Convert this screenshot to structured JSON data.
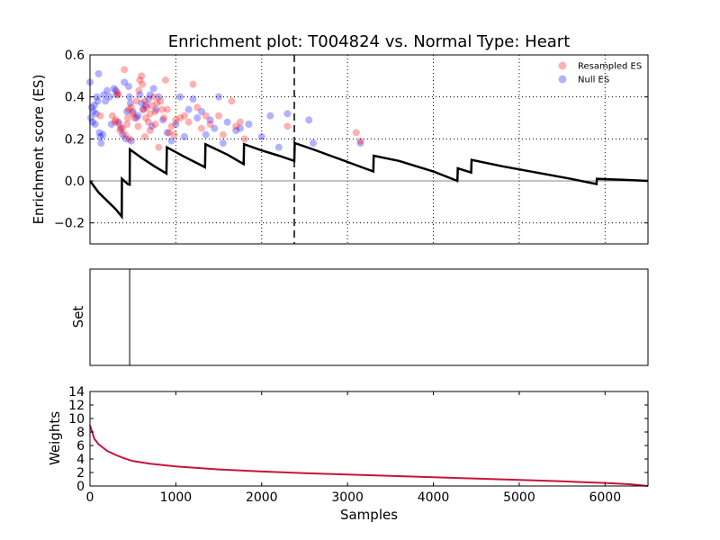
{
  "chart_data": [
    {
      "type": "line",
      "title": "Enrichment plot: T004824 vs. Normal Type: Heart",
      "ylabel": "Enrichment score (ES)",
      "xlim": [
        0,
        6500
      ],
      "ylim": [
        -0.3,
        0.6
      ],
      "yticks": [
        -0.2,
        0.0,
        0.2,
        0.4,
        0.6
      ],
      "ytick_labels": [
        "−0.2",
        "0.0",
        "0.2",
        "0.4",
        "0.6"
      ],
      "grid": true,
      "legend_position": "top-right",
      "vertical_marker_x": 2380,
      "es_curve": [
        [
          0,
          0.0
        ],
        [
          100,
          -0.055
        ],
        [
          200,
          -0.095
        ],
        [
          300,
          -0.135
        ],
        [
          370,
          -0.17
        ],
        [
          372,
          0.01
        ],
        [
          440,
          -0.015
        ],
        [
          462,
          -0.018
        ],
        [
          464,
          0.15
        ],
        [
          600,
          0.11
        ],
        [
          750,
          0.07
        ],
        [
          890,
          0.035
        ],
        [
          895,
          0.16
        ],
        [
          1100,
          0.115
        ],
        [
          1340,
          0.065
        ],
        [
          1345,
          0.175
        ],
        [
          1600,
          0.125
        ],
        [
          1790,
          0.08
        ],
        [
          1795,
          0.175
        ],
        [
          2000,
          0.145
        ],
        [
          2200,
          0.12
        ],
        [
          2380,
          0.095
        ],
        [
          2385,
          0.18
        ],
        [
          2600,
          0.15
        ],
        [
          2800,
          0.12
        ],
        [
          3000,
          0.09
        ],
        [
          3200,
          0.06
        ],
        [
          3300,
          0.045
        ],
        [
          3305,
          0.12
        ],
        [
          3600,
          0.095
        ],
        [
          4000,
          0.045
        ],
        [
          4280,
          0.0
        ],
        [
          4285,
          0.06
        ],
        [
          4440,
          0.04
        ],
        [
          4445,
          0.1
        ],
        [
          4800,
          0.07
        ],
        [
          5200,
          0.04
        ],
        [
          5600,
          0.01
        ],
        [
          5900,
          -0.015
        ],
        [
          5905,
          0.01
        ],
        [
          6200,
          0.005
        ],
        [
          6500,
          0.0
        ]
      ],
      "series": [
        {
          "name": "Resampled ES",
          "color": "#ff0000",
          "points": [
            [
              120,
              0.31
            ],
            [
              260,
              0.31
            ],
            [
              290,
              0.28
            ],
            [
              300,
              0.29
            ],
            [
              320,
              0.42
            ],
            [
              330,
              0.41
            ],
            [
              340,
              0.27
            ],
            [
              350,
              0.24
            ],
            [
              380,
              0.25
            ],
            [
              400,
              0.53
            ],
            [
              410,
              0.22
            ],
            [
              430,
              0.27
            ],
            [
              440,
              0.3
            ],
            [
              450,
              0.34
            ],
            [
              460,
              0.2
            ],
            [
              480,
              0.35
            ],
            [
              500,
              0.32
            ],
            [
              520,
              0.3
            ],
            [
              540,
              0.38
            ],
            [
              560,
              0.26
            ],
            [
              570,
              0.43
            ],
            [
              580,
              0.48
            ],
            [
              600,
              0.5
            ],
            [
              610,
              0.46
            ],
            [
              620,
              0.34
            ],
            [
              640,
              0.38
            ],
            [
              650,
              0.3
            ],
            [
              660,
              0.35
            ],
            [
              680,
              0.28
            ],
            [
              700,
              0.32
            ],
            [
              720,
              0.36
            ],
            [
              740,
              0.4
            ],
            [
              760,
              0.27
            ],
            [
              780,
              0.37
            ],
            [
              800,
              0.16
            ],
            [
              820,
              0.38
            ],
            [
              840,
              0.34
            ],
            [
              860,
              0.3
            ],
            [
              880,
              0.48
            ],
            [
              900,
              0.34
            ],
            [
              920,
              0.23
            ],
            [
              950,
              0.26
            ],
            [
              980,
              0.22
            ],
            [
              1000,
              0.29
            ],
            [
              1050,
              0.3
            ],
            [
              1100,
              0.31
            ],
            [
              1150,
              0.28
            ],
            [
              1200,
              0.46
            ],
            [
              1250,
              0.35
            ],
            [
              1300,
              0.25
            ],
            [
              1350,
              0.31
            ],
            [
              1400,
              0.27
            ],
            [
              1500,
              0.31
            ],
            [
              1550,
              0.22
            ],
            [
              1650,
              0.38
            ],
            [
              1700,
              0.26
            ],
            [
              1750,
              0.28
            ],
            [
              1800,
              0.2
            ],
            [
              2300,
              0.26
            ],
            [
              3100,
              0.23
            ],
            [
              3150,
              0.19
            ],
            [
              640,
              0.21
            ],
            [
              700,
              0.24
            ],
            [
              760,
              0.33
            ]
          ]
        },
        {
          "name": "Null ES",
          "color": "#0000ff",
          "points": [
            [
              0,
              0.47
            ],
            [
              10,
              0.3
            ],
            [
              20,
              0.35
            ],
            [
              30,
              0.28
            ],
            [
              40,
              0.33
            ],
            [
              50,
              0.36
            ],
            [
              60,
              0.27
            ],
            [
              70,
              0.32
            ],
            [
              80,
              0.4
            ],
            [
              90,
              0.38
            ],
            [
              100,
              0.51
            ],
            [
              110,
              0.23
            ],
            [
              120,
              0.21
            ],
            [
              130,
              0.18
            ],
            [
              150,
              0.22
            ],
            [
              160,
              0.41
            ],
            [
              180,
              0.38
            ],
            [
              200,
              0.43
            ],
            [
              230,
              0.4
            ],
            [
              250,
              0.27
            ],
            [
              280,
              0.44
            ],
            [
              300,
              0.43
            ],
            [
              310,
              0.41
            ],
            [
              330,
              0.28
            ],
            [
              360,
              0.25
            ],
            [
              380,
              0.22
            ],
            [
              400,
              0.47
            ],
            [
              420,
              0.2
            ],
            [
              430,
              0.33
            ],
            [
              450,
              0.45
            ],
            [
              460,
              0.4
            ],
            [
              470,
              0.37
            ],
            [
              480,
              0.19
            ],
            [
              500,
              0.33
            ],
            [
              540,
              0.3
            ],
            [
              560,
              0.31
            ],
            [
              580,
              0.41
            ],
            [
              600,
              0.37
            ],
            [
              620,
              0.34
            ],
            [
              650,
              0.36
            ],
            [
              680,
              0.39
            ],
            [
              700,
              0.41
            ],
            [
              720,
              0.26
            ],
            [
              740,
              0.44
            ],
            [
              770,
              0.34
            ],
            [
              800,
              0.4
            ],
            [
              850,
              0.29
            ],
            [
              900,
              0.23
            ],
            [
              950,
              0.19
            ],
            [
              1000,
              0.27
            ],
            [
              1050,
              0.4
            ],
            [
              1100,
              0.21
            ],
            [
              1150,
              0.34
            ],
            [
              1200,
              0.39
            ],
            [
              1250,
              0.3
            ],
            [
              1300,
              0.33
            ],
            [
              1350,
              0.22
            ],
            [
              1400,
              0.29
            ],
            [
              1450,
              0.25
            ],
            [
              1500,
              0.4
            ],
            [
              1550,
              0.18
            ],
            [
              1600,
              0.28
            ],
            [
              1700,
              0.24
            ],
            [
              1750,
              0.25
            ],
            [
              1850,
              0.27
            ],
            [
              2000,
              0.21
            ],
            [
              2100,
              0.31
            ],
            [
              2200,
              0.16
            ],
            [
              2300,
              0.32
            ],
            [
              2550,
              0.29
            ],
            [
              2600,
              0.18
            ],
            [
              3150,
              0.18
            ]
          ]
        }
      ]
    },
    {
      "type": "bar",
      "ylabel": "Set",
      "xlim": [
        0,
        6500
      ],
      "set_positions": [
        462
      ]
    },
    {
      "type": "line",
      "xlabel": "Samples",
      "ylabel": "Weights",
      "xlim": [
        0,
        6500
      ],
      "ylim": [
        0,
        14
      ],
      "xticks": [
        0,
        1000,
        2000,
        3000,
        4000,
        5000,
        6000
      ],
      "yticks": [
        0,
        2,
        4,
        6,
        8,
        10,
        12,
        14
      ],
      "line_color": "#c8143c",
      "weights": [
        [
          0,
          9.0
        ],
        [
          50,
          7.0
        ],
        [
          100,
          6.2
        ],
        [
          200,
          5.2
        ],
        [
          300,
          4.6
        ],
        [
          400,
          4.1
        ],
        [
          500,
          3.7
        ],
        [
          700,
          3.3
        ],
        [
          1000,
          2.9
        ],
        [
          1500,
          2.45
        ],
        [
          2000,
          2.15
        ],
        [
          2500,
          1.9
        ],
        [
          3000,
          1.7
        ],
        [
          3500,
          1.5
        ],
        [
          4000,
          1.3
        ],
        [
          4500,
          1.1
        ],
        [
          5000,
          0.9
        ],
        [
          5500,
          0.7
        ],
        [
          6000,
          0.45
        ],
        [
          6300,
          0.25
        ],
        [
          6500,
          0.0
        ]
      ]
    }
  ]
}
